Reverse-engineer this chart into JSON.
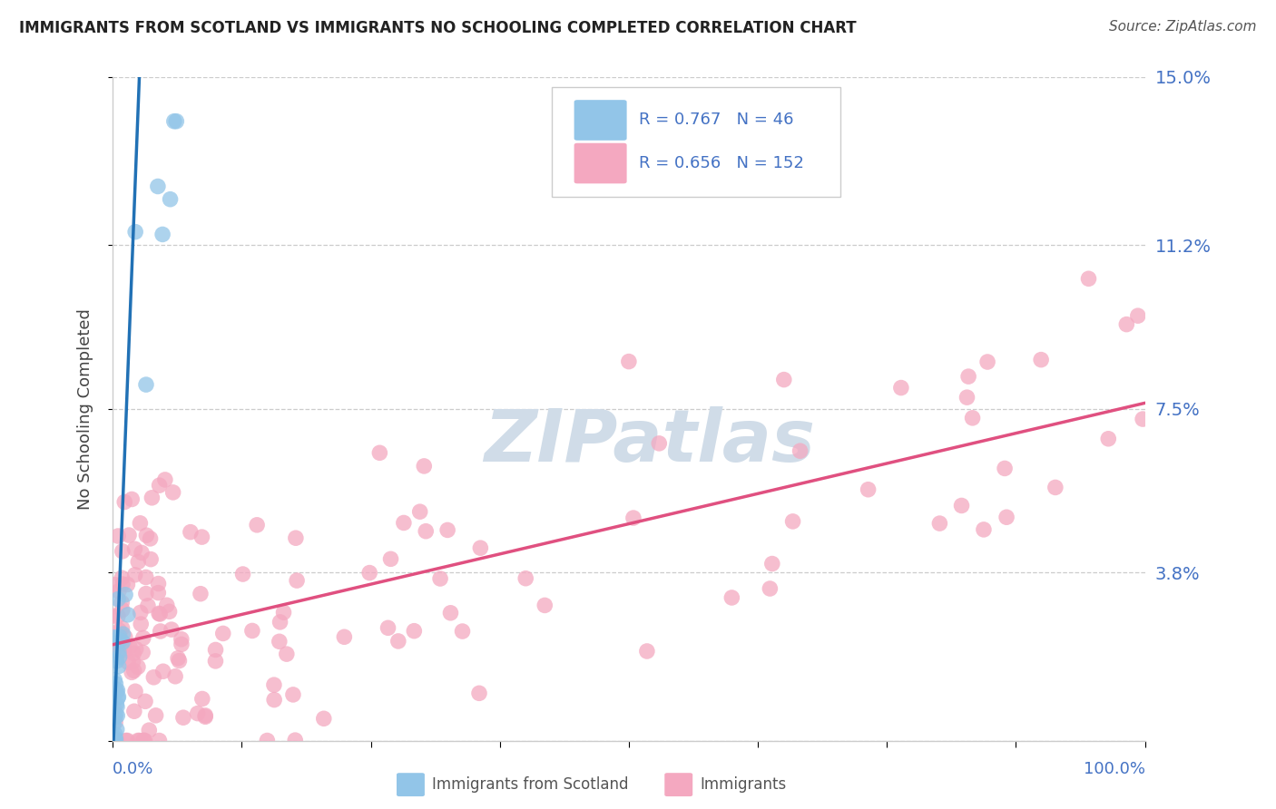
{
  "title": "IMMIGRANTS FROM SCOTLAND VS IMMIGRANTS NO SCHOOLING COMPLETED CORRELATION CHART",
  "source": "Source: ZipAtlas.com",
  "ylabel": "No Schooling Completed",
  "legend_label_1": "Immigrants from Scotland",
  "legend_label_2": "Immigrants",
  "R1": 0.767,
  "N1": 46,
  "R2": 0.656,
  "N2": 152,
  "color1": "#92c5e8",
  "color2": "#f4a8c0",
  "trendline1_color": "#2171b5",
  "trendline2_color": "#e05080",
  "xlim": [
    0.0,
    1.0
  ],
  "ylim": [
    0.0,
    0.15
  ],
  "yticks": [
    0.0,
    0.038,
    0.075,
    0.112,
    0.15
  ],
  "ytick_labels": [
    "",
    "3.8%",
    "7.5%",
    "11.2%",
    "15.0%"
  ],
  "background_color": "#ffffff",
  "title_color": "#222222",
  "tick_color": "#4472c4",
  "grid_color": "#cccccc",
  "watermark_color": "#d0dce8",
  "source_color": "#555555"
}
